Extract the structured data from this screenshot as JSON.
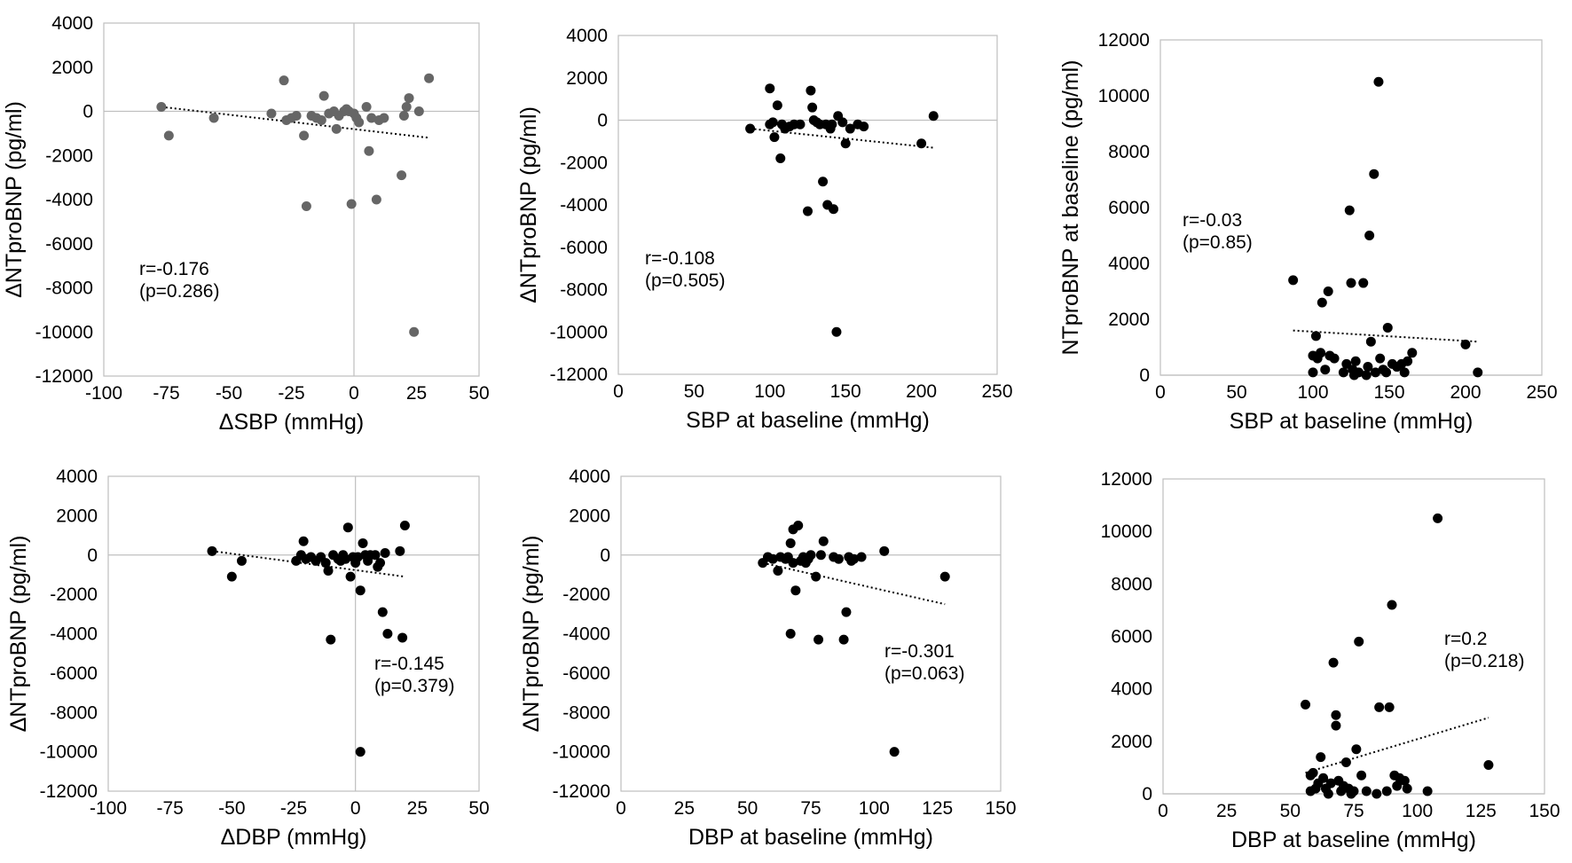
{
  "chart_data": [
    {
      "type": "scatter",
      "xlabel": "ΔSBP (mmHg)",
      "ylabel": "ΔNTproBNP (pg/ml)",
      "xlim": [
        -100,
        50
      ],
      "ylim": [
        -12000,
        4000
      ],
      "xticks": [
        "-100",
        "-75",
        "-50",
        "-25",
        "0",
        "25",
        "50"
      ],
      "yticks": [
        "4000",
        "2000",
        "0",
        "-2000",
        "-4000",
        "-6000",
        "-8000",
        "-10000",
        "-12000"
      ],
      "annotation": [
        "r=-0.176",
        "(p=0.286)"
      ],
      "point_color": "#666666",
      "trendline": [
        [
          -77,
          200
        ],
        [
          30,
          -1200
        ]
      ],
      "points": [
        [
          -77,
          200
        ],
        [
          -74,
          -1100
        ],
        [
          -56,
          -300
        ],
        [
          -33,
          -100
        ],
        [
          -28,
          1400
        ],
        [
          -27,
          -400
        ],
        [
          -25,
          -300
        ],
        [
          -23,
          -200
        ],
        [
          -20,
          -1100
        ],
        [
          -19,
          -4300
        ],
        [
          -17,
          -200
        ],
        [
          -15,
          -300
        ],
        [
          -13,
          -400
        ],
        [
          -12,
          700
        ],
        [
          -10,
          -100
        ],
        [
          -8,
          0
        ],
        [
          -7,
          -800
        ],
        [
          -6,
          -200
        ],
        [
          -4,
          0
        ],
        [
          -3,
          100
        ],
        [
          -2,
          0
        ],
        [
          -1,
          -4200
        ],
        [
          0,
          -100
        ],
        [
          1,
          -300
        ],
        [
          2,
          -500
        ],
        [
          5,
          200
        ],
        [
          6,
          -1800
        ],
        [
          7,
          -300
        ],
        [
          9,
          -4000
        ],
        [
          10,
          -400
        ],
        [
          12,
          -300
        ],
        [
          19,
          -2900
        ],
        [
          20,
          -200
        ],
        [
          21,
          200
        ],
        [
          22,
          600
        ],
        [
          24,
          -10000
        ],
        [
          26,
          0
        ],
        [
          30,
          1500
        ]
      ]
    },
    {
      "type": "scatter",
      "xlabel": "SBP at baseline (mmHg)",
      "ylabel": "ΔNTproBNP (pg/ml)",
      "xlim": [
        0,
        250
      ],
      "ylim": [
        -12000,
        4000
      ],
      "xticks": [
        "0",
        "50",
        "100",
        "150",
        "200",
        "250"
      ],
      "yticks": [
        "4000",
        "2000",
        "0",
        "-2000",
        "-4000",
        "-6000",
        "-8000",
        "-10000",
        "-12000"
      ],
      "annotation": [
        "r=-0.108",
        "(p=0.505)"
      ],
      "point_color": "#000000",
      "trendline": [
        [
          87,
          -400
        ],
        [
          208,
          -1300
        ]
      ],
      "points": [
        [
          87,
          -400
        ],
        [
          100,
          1500
        ],
        [
          100,
          -200
        ],
        [
          102,
          -100
        ],
        [
          103,
          -800
        ],
        [
          105,
          700
        ],
        [
          107,
          -1800
        ],
        [
          108,
          -200
        ],
        [
          110,
          -400
        ],
        [
          113,
          -300
        ],
        [
          116,
          -200
        ],
        [
          120,
          -200
        ],
        [
          125,
          -4300
        ],
        [
          127,
          1400
        ],
        [
          128,
          600
        ],
        [
          129,
          0
        ],
        [
          131,
          -100
        ],
        [
          133,
          -200
        ],
        [
          135,
          -2900
        ],
        [
          137,
          -200
        ],
        [
          138,
          -4000
        ],
        [
          140,
          -400
        ],
        [
          141,
          -200
        ],
        [
          142,
          -4200
        ],
        [
          144,
          -10000
        ],
        [
          145,
          200
        ],
        [
          148,
          -100
        ],
        [
          150,
          -1100
        ],
        [
          153,
          -400
        ],
        [
          158,
          -200
        ],
        [
          162,
          -300
        ],
        [
          200,
          -1100
        ],
        [
          208,
          200
        ]
      ]
    },
    {
      "type": "scatter",
      "xlabel": "SBP at baseline (mmHg)",
      "ylabel": "NTproBNP at baseline (pg/ml)",
      "xlim": [
        0,
        250
      ],
      "ylim": [
        0,
        12000
      ],
      "xticks": [
        "0",
        "50",
        "100",
        "150",
        "200",
        "250"
      ],
      "yticks": [
        "12000",
        "10000",
        "8000",
        "6000",
        "4000",
        "2000",
        "0"
      ],
      "annotation": [
        "r=-0.03",
        "(p=0.85)"
      ],
      "point_color": "#000000",
      "trendline": [
        [
          87,
          1600
        ],
        [
          208,
          1200
        ]
      ],
      "points": [
        [
          87,
          3400
        ],
        [
          100,
          700
        ],
        [
          100,
          100
        ],
        [
          102,
          1400
        ],
        [
          103,
          600
        ],
        [
          105,
          800
        ],
        [
          106,
          2600
        ],
        [
          108,
          200
        ],
        [
          110,
          3000
        ],
        [
          111,
          700
        ],
        [
          114,
          600
        ],
        [
          120,
          100
        ],
        [
          122,
          400
        ],
        [
          124,
          5900
        ],
        [
          125,
          3300
        ],
        [
          126,
          200
        ],
        [
          127,
          0
        ],
        [
          128,
          500
        ],
        [
          130,
          100
        ],
        [
          133,
          3300
        ],
        [
          135,
          0
        ],
        [
          136,
          300
        ],
        [
          137,
          5000
        ],
        [
          138,
          1200
        ],
        [
          140,
          7200
        ],
        [
          141,
          100
        ],
        [
          143,
          10500
        ],
        [
          144,
          600
        ],
        [
          146,
          200
        ],
        [
          148,
          100
        ],
        [
          149,
          1700
        ],
        [
          152,
          400
        ],
        [
          155,
          300
        ],
        [
          158,
          400
        ],
        [
          160,
          100
        ],
        [
          162,
          500
        ],
        [
          165,
          800
        ],
        [
          200,
          1100
        ],
        [
          208,
          100
        ]
      ]
    },
    {
      "type": "scatter",
      "xlabel": "ΔDBP (mmHg)",
      "ylabel": "ΔNTproBNP (pg/ml)",
      "xlim": [
        -100,
        50
      ],
      "ylim": [
        -12000,
        4000
      ],
      "xticks": [
        "-100",
        "-75",
        "-50",
        "-25",
        "0",
        "25",
        "50"
      ],
      "yticks": [
        "4000",
        "2000",
        "0",
        "-2000",
        "-4000",
        "-6000",
        "-8000",
        "-10000",
        "-12000"
      ],
      "annotation": [
        "r=-0.145",
        "(p=0.379)"
      ],
      "point_color": "#000000",
      "trendline": [
        [
          -58,
          200
        ],
        [
          20,
          -1100
        ]
      ],
      "points": [
        [
          -58,
          200
        ],
        [
          -50,
          -1100
        ],
        [
          -46,
          -300
        ],
        [
          -24,
          -300
        ],
        [
          -22,
          0
        ],
        [
          -21,
          700
        ],
        [
          -20,
          -200
        ],
        [
          -18,
          -100
        ],
        [
          -16,
          -300
        ],
        [
          -14,
          -100
        ],
        [
          -12,
          -400
        ],
        [
          -11,
          -800
        ],
        [
          -10,
          -4300
        ],
        [
          -9,
          0
        ],
        [
          -7,
          -200
        ],
        [
          -6,
          -300
        ],
        [
          -5,
          0
        ],
        [
          -4,
          -200
        ],
        [
          -3,
          1400
        ],
        [
          -2,
          -1100
        ],
        [
          -1,
          -100
        ],
        [
          0,
          -400
        ],
        [
          1,
          -100
        ],
        [
          2,
          -1800
        ],
        [
          2,
          -10000
        ],
        [
          3,
          600
        ],
        [
          4,
          0
        ],
        [
          5,
          -300
        ],
        [
          6,
          0
        ],
        [
          8,
          0
        ],
        [
          9,
          -600
        ],
        [
          10,
          -400
        ],
        [
          11,
          -2900
        ],
        [
          12,
          100
        ],
        [
          13,
          -4000
        ],
        [
          18,
          200
        ],
        [
          19,
          -4200
        ],
        [
          20,
          1500
        ]
      ]
    },
    {
      "type": "scatter",
      "xlabel": "DBP at baseline (mmHg)",
      "ylabel": "ΔNTproBNP (pg/ml)",
      "xlim": [
        0,
        150
      ],
      "ylim": [
        -12000,
        4000
      ],
      "xticks": [
        "0",
        "25",
        "50",
        "75",
        "100",
        "125",
        "150"
      ],
      "yticks": [
        "4000",
        "2000",
        "0",
        "-2000",
        "-4000",
        "-6000",
        "-8000",
        "-10000",
        "-12000"
      ],
      "annotation": [
        "r=-0.301",
        "(p=0.063)"
      ],
      "point_color": "#000000",
      "trendline": [
        [
          56,
          -400
        ],
        [
          128,
          -2500
        ]
      ],
      "points": [
        [
          56,
          -400
        ],
        [
          58,
          -100
        ],
        [
          60,
          -200
        ],
        [
          62,
          -800
        ],
        [
          63,
          -100
        ],
        [
          65,
          -200
        ],
        [
          66,
          -100
        ],
        [
          67,
          600
        ],
        [
          67,
          -4000
        ],
        [
          68,
          1300
        ],
        [
          68,
          -400
        ],
        [
          69,
          -1800
        ],
        [
          70,
          1500
        ],
        [
          71,
          -300
        ],
        [
          72,
          -100
        ],
        [
          73,
          -400
        ],
        [
          74,
          -200
        ],
        [
          75,
          0
        ],
        [
          77,
          -1100
        ],
        [
          78,
          -4300
        ],
        [
          79,
          0
        ],
        [
          80,
          700
        ],
        [
          84,
          -100
        ],
        [
          86,
          -200
        ],
        [
          88,
          -4300
        ],
        [
          89,
          -2900
        ],
        [
          90,
          -100
        ],
        [
          91,
          -300
        ],
        [
          92,
          -200
        ],
        [
          95,
          -100
        ],
        [
          104,
          200
        ],
        [
          108,
          -10000
        ],
        [
          128,
          -1100
        ]
      ]
    },
    {
      "type": "scatter",
      "xlabel": "DBP at baseline (mmHg)",
      "ylabel": "",
      "xlim": [
        0,
        150
      ],
      "ylim": [
        0,
        12000
      ],
      "xticks": [
        "0",
        "25",
        "50",
        "75",
        "100",
        "125",
        "150"
      ],
      "yticks": [
        "12000",
        "10000",
        "8000",
        "6000",
        "4000",
        "2000",
        "0"
      ],
      "annotation": [
        "r=0.2",
        "(p=0.218)"
      ],
      "point_color": "#000000",
      "trendline": [
        [
          56,
          800
        ],
        [
          128,
          2900
        ]
      ],
      "points": [
        [
          56,
          3400
        ],
        [
          58,
          700
        ],
        [
          58,
          100
        ],
        [
          59,
          800
        ],
        [
          60,
          200
        ],
        [
          61,
          400
        ],
        [
          62,
          1400
        ],
        [
          63,
          600
        ],
        [
          64,
          200
        ],
        [
          65,
          0
        ],
        [
          66,
          400
        ],
        [
          67,
          5000
        ],
        [
          68,
          3000
        ],
        [
          68,
          2600
        ],
        [
          69,
          500
        ],
        [
          70,
          100
        ],
        [
          71,
          300
        ],
        [
          72,
          1200
        ],
        [
          73,
          200
        ],
        [
          74,
          0
        ],
        [
          75,
          100
        ],
        [
          76,
          1700
        ],
        [
          77,
          5800
        ],
        [
          78,
          700
        ],
        [
          80,
          100
        ],
        [
          84,
          0
        ],
        [
          85,
          3300
        ],
        [
          88,
          100
        ],
        [
          89,
          3300
        ],
        [
          90,
          7200
        ],
        [
          91,
          700
        ],
        [
          92,
          300
        ],
        [
          93,
          600
        ],
        [
          95,
          500
        ],
        [
          96,
          200
        ],
        [
          104,
          100
        ],
        [
          108,
          10500
        ],
        [
          128,
          1100
        ]
      ]
    }
  ]
}
